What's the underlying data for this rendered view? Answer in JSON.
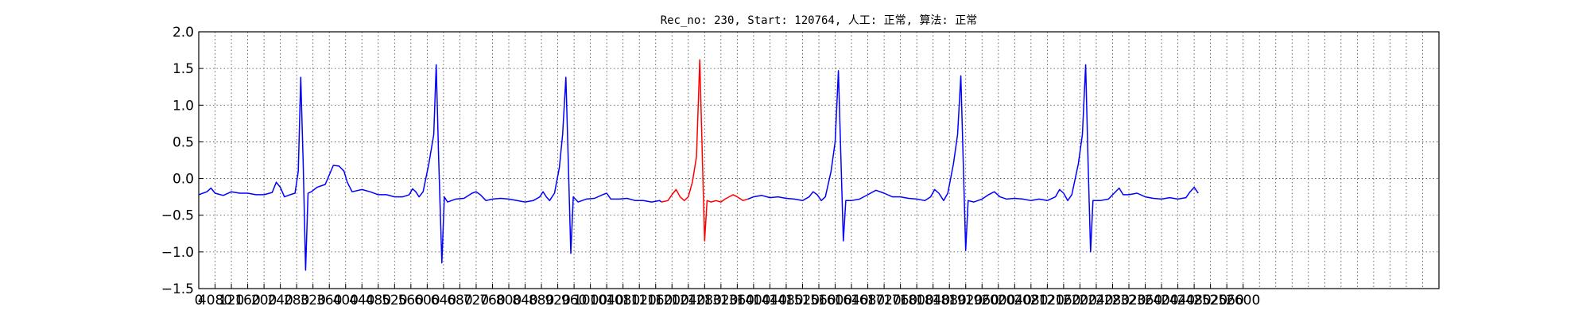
{
  "chart_data": {
    "type": "line",
    "title": "Rec_no: 230, Start: 120764, 人工: 正常, 算法: 正常",
    "xlabel": "",
    "ylabel": "",
    "xlim": [
      0,
      1520
    ],
    "ylim": [
      -1.5,
      2.0
    ],
    "grid": true,
    "x_tick_step": 20,
    "y_ticks": [
      "2.0",
      "1.5",
      "1.0",
      "0.5",
      "0.0",
      "−0.5",
      "−1.0",
      "−1.5"
    ],
    "y_tick_values": [
      2.0,
      1.5,
      1.0,
      0.5,
      0.0,
      -0.5,
      -1.0,
      -1.5
    ],
    "x_tick_labels": [
      "0",
      "4080",
      "120",
      "160",
      "200",
      "240",
      "280",
      "320",
      "360",
      "400",
      "440",
      "480",
      "520",
      "560",
      "600",
      "640",
      "680",
      "720",
      "760",
      "800",
      "840",
      "880",
      "920",
      "960",
      "1000",
      "1040",
      "1080",
      "1120",
      "1160",
      "1200",
      "1240",
      "1280",
      "1320",
      "1360",
      "1400",
      "1440",
      "1480",
      "1520",
      "1560",
      "1600",
      "1640",
      "1680",
      "1720",
      "1760",
      "1800",
      "1840",
      "1880",
      "1920",
      "1960",
      "2000",
      "2040",
      "2080",
      "2120",
      "2160",
      "2200",
      "2240",
      "2280",
      "2320",
      "2360",
      "2400",
      "2440",
      "2480",
      "2520",
      "2560",
      "2600"
    ],
    "series": [
      {
        "color": "#0000ff",
        "segment": "before",
        "points": [
          [
            0,
            -0.22
          ],
          [
            10,
            -0.18
          ],
          [
            15,
            -0.13
          ],
          [
            20,
            -0.2
          ],
          [
            30,
            -0.23
          ],
          [
            40,
            -0.18
          ],
          [
            50,
            -0.2
          ],
          [
            60,
            -0.2
          ],
          [
            70,
            -0.22
          ],
          [
            80,
            -0.22
          ],
          [
            90,
            -0.19
          ],
          [
            95,
            -0.05
          ],
          [
            100,
            -0.12
          ],
          [
            105,
            -0.25
          ],
          [
            112,
            -0.22
          ],
          [
            118,
            -0.2
          ],
          [
            122,
            0.1
          ],
          [
            125,
            1.38
          ],
          [
            128,
            0.2
          ],
          [
            131,
            -1.25
          ],
          [
            134,
            -0.2
          ],
          [
            138,
            -0.18
          ],
          [
            145,
            -0.12
          ],
          [
            155,
            -0.08
          ],
          [
            160,
            0.05
          ],
          [
            165,
            0.18
          ],
          [
            172,
            0.17
          ],
          [
            178,
            0.1
          ],
          [
            182,
            -0.05
          ],
          [
            188,
            -0.18
          ],
          [
            200,
            -0.15
          ],
          [
            210,
            -0.18
          ],
          [
            220,
            -0.22
          ],
          [
            230,
            -0.22
          ],
          [
            240,
            -0.25
          ],
          [
            250,
            -0.25
          ],
          [
            258,
            -0.22
          ],
          [
            262,
            -0.14
          ],
          [
            266,
            -0.18
          ],
          [
            270,
            -0.25
          ],
          [
            275,
            -0.18
          ],
          [
            282,
            0.2
          ],
          [
            288,
            0.6
          ],
          [
            291,
            1.55
          ],
          [
            294,
            0.3
          ],
          [
            298,
            -1.15
          ],
          [
            301,
            -0.25
          ],
          [
            305,
            -0.32
          ],
          [
            315,
            -0.28
          ],
          [
            325,
            -0.27
          ],
          [
            335,
            -0.2
          ],
          [
            340,
            -0.18
          ],
          [
            345,
            -0.22
          ],
          [
            352,
            -0.3
          ],
          [
            360,
            -0.28
          ],
          [
            370,
            -0.27
          ],
          [
            380,
            -0.28
          ],
          [
            390,
            -0.3
          ],
          [
            400,
            -0.32
          ],
          [
            410,
            -0.3
          ],
          [
            418,
            -0.25
          ],
          [
            422,
            -0.18
          ],
          [
            426,
            -0.25
          ],
          [
            430,
            -0.3
          ],
          [
            436,
            -0.2
          ],
          [
            442,
            0.15
          ],
          [
            446,
            0.6
          ],
          [
            450,
            1.38
          ],
          [
            453,
            0.2
          ],
          [
            456,
            -1.02
          ],
          [
            459,
            -0.25
          ],
          [
            465,
            -0.32
          ],
          [
            475,
            -0.28
          ],
          [
            485,
            -0.27
          ],
          [
            495,
            -0.22
          ],
          [
            500,
            -0.2
          ],
          [
            505,
            -0.28
          ],
          [
            515,
            -0.28
          ],
          [
            525,
            -0.27
          ],
          [
            535,
            -0.3
          ],
          [
            545,
            -0.3
          ],
          [
            555,
            -0.32
          ],
          [
            565,
            -0.3
          ],
          [
            567,
            -0.32
          ]
        ]
      },
      {
        "color": "#ff0000",
        "segment": "highlight",
        "points": [
          [
            567,
            -0.32
          ],
          [
            575,
            -0.3
          ],
          [
            580,
            -0.22
          ],
          [
            585,
            -0.15
          ],
          [
            590,
            -0.25
          ],
          [
            595,
            -0.3
          ],
          [
            600,
            -0.25
          ],
          [
            605,
            -0.05
          ],
          [
            610,
            0.3
          ],
          [
            614,
            1.62
          ],
          [
            617,
            0.4
          ],
          [
            620,
            -0.85
          ],
          [
            623,
            -0.3
          ],
          [
            628,
            -0.32
          ],
          [
            634,
            -0.3
          ],
          [
            640,
            -0.32
          ],
          [
            645,
            -0.28
          ],
          [
            650,
            -0.25
          ],
          [
            655,
            -0.22
          ],
          [
            660,
            -0.25
          ],
          [
            667,
            -0.3
          ],
          [
            673,
            -0.28
          ]
        ]
      },
      {
        "color": "#0000ff",
        "segment": "after",
        "points": [
          [
            673,
            -0.28
          ],
          [
            680,
            -0.25
          ],
          [
            690,
            -0.23
          ],
          [
            700,
            -0.26
          ],
          [
            710,
            -0.25
          ],
          [
            720,
            -0.27
          ],
          [
            730,
            -0.28
          ],
          [
            740,
            -0.3
          ],
          [
            748,
            -0.25
          ],
          [
            753,
            -0.18
          ],
          [
            758,
            -0.22
          ],
          [
            763,
            -0.3
          ],
          [
            768,
            -0.25
          ],
          [
            775,
            0.1
          ],
          [
            780,
            0.5
          ],
          [
            784,
            1.47
          ],
          [
            787,
            0.3
          ],
          [
            790,
            -0.85
          ],
          [
            793,
            -0.3
          ],
          [
            800,
            -0.3
          ],
          [
            810,
            -0.28
          ],
          [
            820,
            -0.22
          ],
          [
            830,
            -0.16
          ],
          [
            840,
            -0.2
          ],
          [
            850,
            -0.25
          ],
          [
            860,
            -0.25
          ],
          [
            870,
            -0.27
          ],
          [
            880,
            -0.28
          ],
          [
            890,
            -0.3
          ],
          [
            897,
            -0.25
          ],
          [
            902,
            -0.15
          ],
          [
            907,
            -0.2
          ],
          [
            913,
            -0.3
          ],
          [
            918,
            -0.2
          ],
          [
            925,
            0.2
          ],
          [
            930,
            0.6
          ],
          [
            934,
            1.4
          ],
          [
            937,
            0.2
          ],
          [
            940,
            -0.98
          ],
          [
            943,
            -0.3
          ],
          [
            950,
            -0.32
          ],
          [
            960,
            -0.28
          ],
          [
            968,
            -0.22
          ],
          [
            975,
            -0.18
          ],
          [
            982,
            -0.25
          ],
          [
            990,
            -0.28
          ],
          [
            1000,
            -0.27
          ],
          [
            1010,
            -0.28
          ],
          [
            1020,
            -0.3
          ],
          [
            1030,
            -0.28
          ],
          [
            1040,
            -0.3
          ],
          [
            1050,
            -0.25
          ],
          [
            1055,
            -0.15
          ],
          [
            1060,
            -0.2
          ],
          [
            1065,
            -0.3
          ],
          [
            1070,
            -0.22
          ],
          [
            1078,
            0.2
          ],
          [
            1083,
            0.6
          ],
          [
            1087,
            1.55
          ],
          [
            1090,
            0.2
          ],
          [
            1093,
            -1.0
          ],
          [
            1096,
            -0.3
          ],
          [
            1105,
            -0.3
          ],
          [
            1115,
            -0.28
          ],
          [
            1122,
            -0.2
          ],
          [
            1128,
            -0.13
          ],
          [
            1133,
            -0.22
          ],
          [
            1140,
            -0.22
          ],
          [
            1150,
            -0.2
          ],
          [
            1160,
            -0.25
          ],
          [
            1170,
            -0.27
          ],
          [
            1180,
            -0.28
          ],
          [
            1190,
            -0.26
          ],
          [
            1200,
            -0.28
          ],
          [
            1210,
            -0.26
          ],
          [
            1215,
            -0.18
          ],
          [
            1220,
            -0.12
          ],
          [
            1225,
            -0.2
          ]
        ]
      }
    ]
  }
}
